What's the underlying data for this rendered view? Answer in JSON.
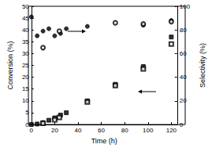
{
  "chart_data": {
    "type": "scatter",
    "x_label": "Time (h)",
    "y_label": "Conversion (%)",
    "y2_label": "Selectivity (%)",
    "xlim": [
      0,
      125
    ],
    "xticks": [
      0,
      20,
      40,
      60,
      80,
      100,
      120
    ],
    "ylim": [
      0,
      50
    ],
    "yticks": [
      0,
      5,
      10,
      15,
      20,
      25,
      30,
      35,
      40,
      45,
      50
    ],
    "y2lim": [
      0,
      100
    ],
    "y2ticks": [
      0,
      20,
      40,
      60,
      80,
      100
    ],
    "grid": false,
    "series": [
      {
        "color": "#000000",
        "marker": "circle",
        "axis": "y2",
        "x": [
          0,
          5,
          10,
          15,
          20,
          25,
          30,
          48,
          96,
          120
        ],
        "values": [
          91,
          75,
          79,
          81,
          75,
          77,
          81,
          83,
          84,
          88
        ]
      },
      {
        "color": "#000000",
        "marker": "emptyCircle",
        "axis": "y2",
        "x": [
          10,
          24,
          72,
          96,
          120
        ],
        "values": [
          65,
          79,
          86,
          85,
          87
        ]
      },
      {
        "color": "#000000",
        "marker": "rect",
        "axis": "y",
        "x": [
          0,
          5,
          10,
          15,
          20,
          25,
          30,
          48,
          72,
          96,
          120
        ],
        "values": [
          0,
          0.2,
          0.8,
          1.8,
          2.8,
          4,
          5,
          10,
          17,
          24.5,
          37
        ]
      },
      {
        "color": "#000000",
        "marker": "emptyRect",
        "axis": "y",
        "x": [
          10,
          20,
          24,
          48,
          72,
          96,
          120
        ],
        "values": [
          0.5,
          2,
          3,
          9.5,
          16.5,
          23.5,
          34
        ]
      }
    ]
  }
}
